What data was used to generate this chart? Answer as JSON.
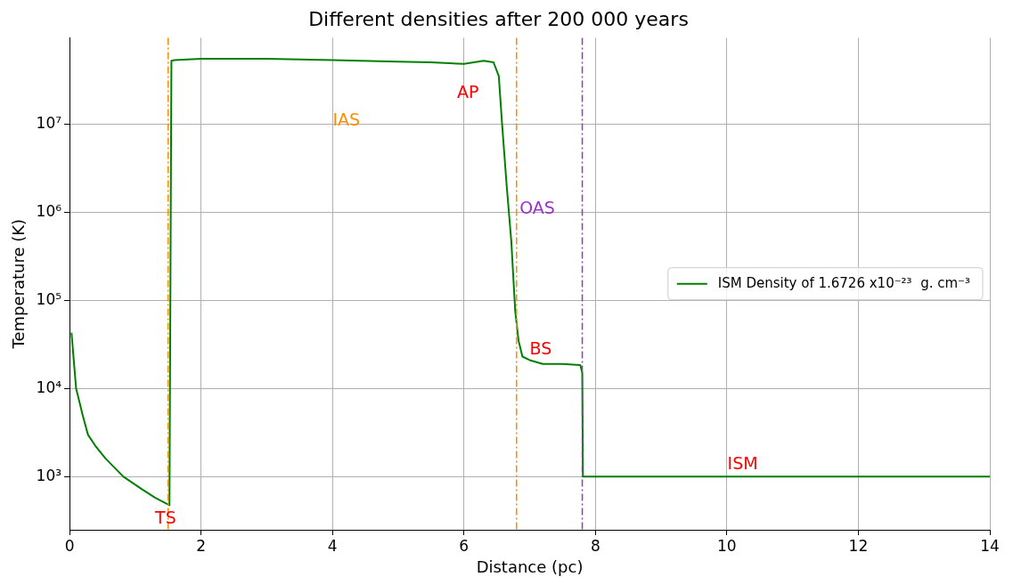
{
  "chart_data": {
    "type": "line",
    "title": "Different densities after 200 000 years",
    "xlabel": "Distance (pc)",
    "ylabel": "Temperature (K)",
    "series": [
      {
        "name": "ISM Density of 1.6726 x10⁻²³  g. cm⁻³",
        "color": "#008000",
        "x": [
          0.03,
          0.1,
          0.2,
          0.28,
          0.4,
          0.55,
          0.82,
          1.09,
          1.3,
          1.52,
          1.55,
          1.6,
          2.0,
          3.0,
          4.0,
          5.0,
          5.5,
          6.0,
          6.3,
          6.45,
          6.53,
          6.58,
          6.65,
          6.72,
          6.78,
          6.83,
          6.89,
          7.0,
          7.2,
          7.5,
          7.77,
          7.8,
          7.81,
          10,
          14
        ],
        "values": [
          43000,
          10000,
          5000,
          3000,
          2200,
          1600,
          1000,
          730,
          580,
          475,
          52000000,
          53000000,
          55000000,
          55000000,
          53000000,
          51000000,
          50000000,
          48000000,
          52000000,
          50000000,
          35000000,
          10000000,
          2000000,
          470000,
          76000,
          35000,
          23000,
          21000,
          19000,
          19000,
          18500,
          15000,
          1000,
          1000,
          1000
        ]
      }
    ],
    "xlim": [
      0,
      14
    ],
    "xticks": [
      0,
      2,
      4,
      6,
      8,
      10,
      12,
      14
    ],
    "ylim": [
      250,
      95000000
    ],
    "yticks": [
      {
        "value": 1000,
        "label": "10³"
      },
      {
        "value": 10000,
        "label": "10⁴"
      },
      {
        "value": 100000,
        "label": "10⁵"
      },
      {
        "value": 1000000,
        "label": "10⁶"
      },
      {
        "value": 10000000,
        "label": "10⁷"
      }
    ],
    "log": true,
    "grid": true,
    "legend": "center right",
    "marker": "none",
    "line_style": "solid",
    "ref_lines": [
      {
        "axis": "x",
        "value": 1.5,
        "color": "#ff8c00",
        "line_style": "dashdot"
      },
      {
        "axis": "x",
        "value": 6.8,
        "color": "#ff8c00",
        "line_style": "dashdot"
      },
      {
        "axis": "x",
        "value": 7.8,
        "color": "#9932cc",
        "line_style": "dashdot"
      }
    ],
    "annotations": [
      "TS",
      "IAS",
      "AP",
      "OAS",
      "BS",
      "ISM"
    ]
  }
}
